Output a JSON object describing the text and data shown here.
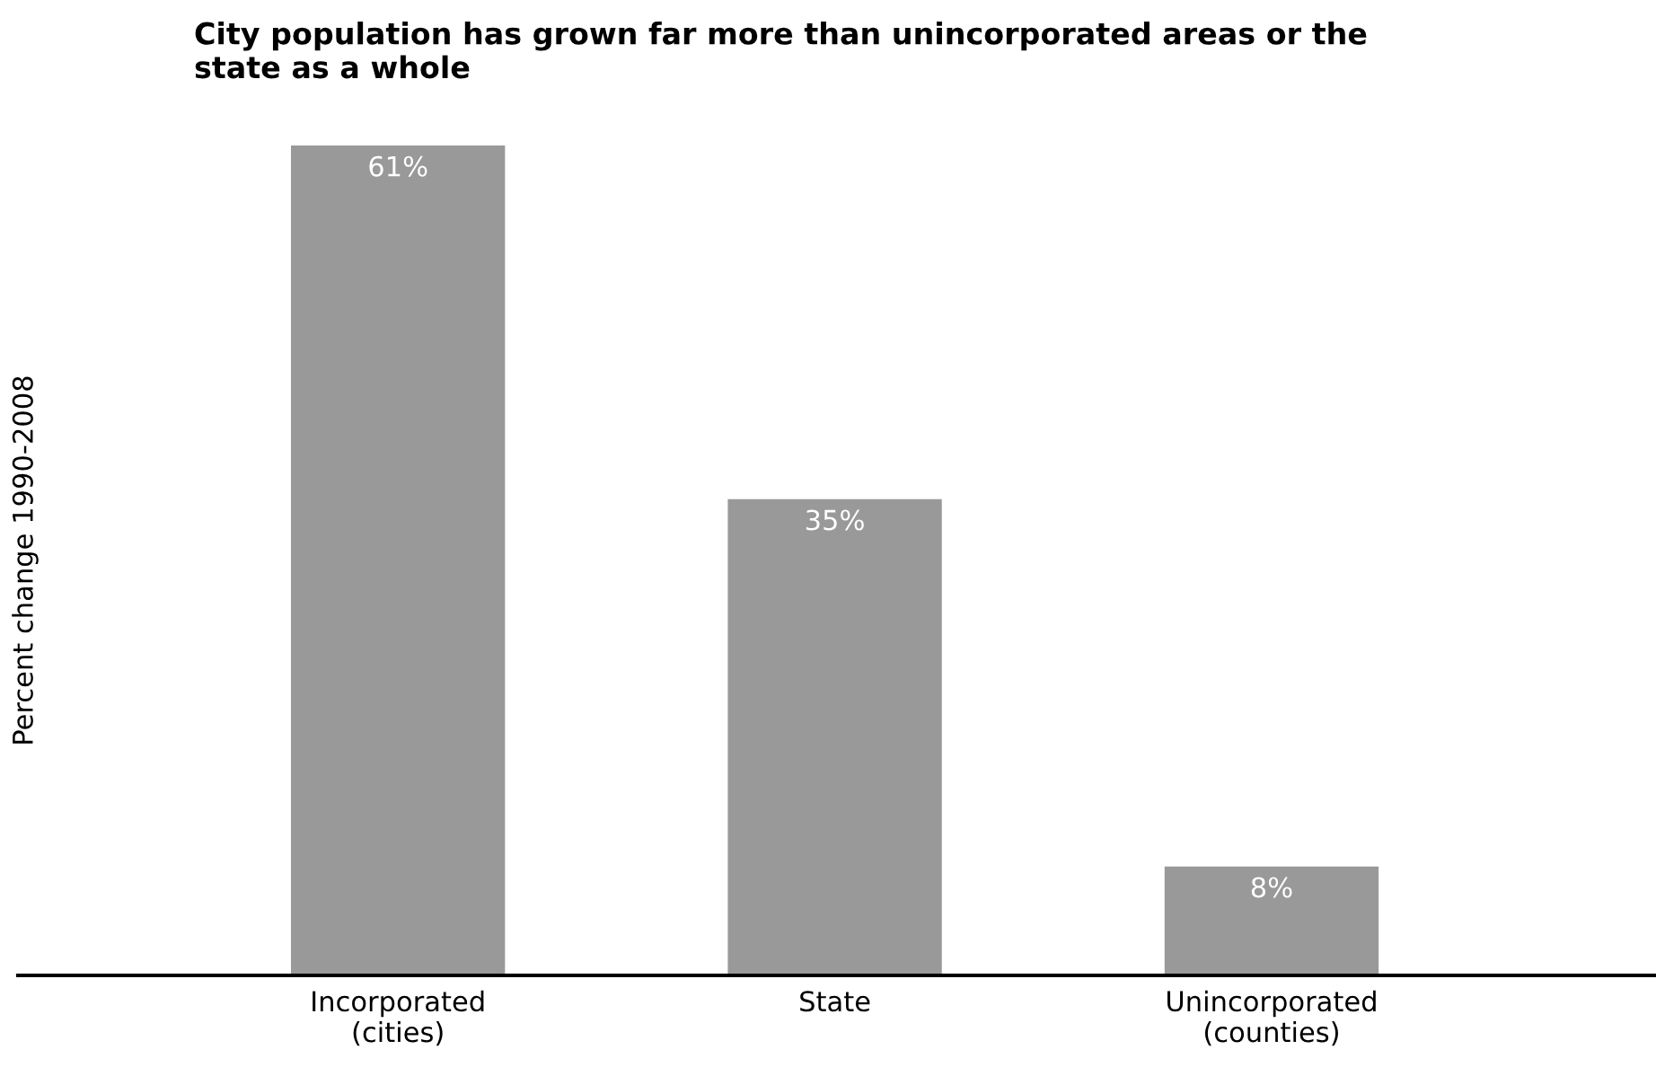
{
  "chart_data": {
    "type": "bar",
    "title": "City population has grown far more than unincorporated areas or the\nstate as a whole",
    "ylabel": "Percent change 1990-2008",
    "categories": [
      "Incorporated\n(cities)",
      "State",
      "Unincorporated\n(counties)"
    ],
    "values": [
      61,
      35,
      8
    ],
    "value_labels": [
      "61%",
      "35%",
      "8%"
    ],
    "color": "#999999",
    "data_labels": false,
    "grid": false,
    "legend": false
  }
}
